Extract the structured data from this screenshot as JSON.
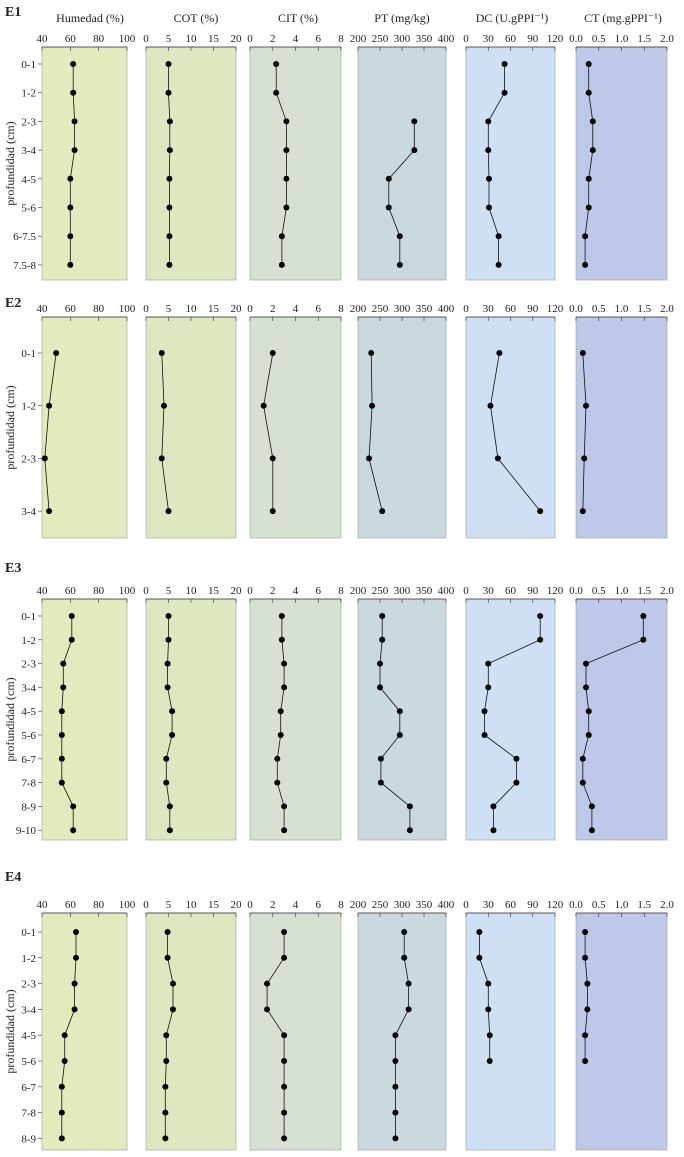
{
  "headers": [
    "Humedad (%)",
    "COT (%)",
    "CIT (%)",
    "PT (mg/kg)",
    "DC (U.gPPI⁻¹)",
    "CT (mg.gPPI⁻¹)"
  ],
  "ylabel": "profundidad (cm)",
  "colors": {
    "panels": [
      "#e2ebbd",
      "#dbe8c0",
      "#d6e1d4",
      "#c9d9dd",
      "#cfdff4",
      "#bec8e8"
    ],
    "axis": "#333333",
    "marker": "#000000"
  },
  "axes": [
    {
      "name": "Humedad",
      "lim": [
        40,
        100
      ],
      "ticks": [
        40,
        60,
        80,
        100
      ]
    },
    {
      "name": "COT",
      "lim": [
        0,
        20
      ],
      "ticks": [
        0,
        5,
        10,
        15,
        20
      ]
    },
    {
      "name": "CIT",
      "lim": [
        0,
        8
      ],
      "ticks": [
        0,
        2,
        4,
        6,
        8
      ]
    },
    {
      "name": "PT",
      "lim": [
        200,
        400
      ],
      "ticks": [
        200,
        250,
        300,
        350,
        400
      ]
    },
    {
      "name": "DC",
      "lim": [
        0,
        120
      ],
      "ticks": [
        0,
        30,
        60,
        90,
        120
      ]
    },
    {
      "name": "CT",
      "lim": [
        0,
        2
      ],
      "ticks": [
        0.0,
        0.5,
        1.0,
        1.5,
        2.0
      ]
    }
  ],
  "chart_data": [
    {
      "type": "line",
      "station": "E1",
      "depths": [
        "0-1",
        "1-2",
        "2-3",
        "3-4",
        "4-5",
        "5-6",
        "6-7.5",
        "7.5-8"
      ],
      "tick_labels": [
        [
          "40",
          "60",
          "80",
          "100"
        ],
        [
          "0",
          "5",
          "10",
          "15",
          "20"
        ],
        [
          "0",
          "2",
          "4",
          "6",
          "8"
        ],
        [
          "200",
          "250",
          "300",
          "350",
          "400"
        ],
        [
          "0",
          "30",
          "60",
          "90",
          "120"
        ],
        [
          "0.0",
          "0.5",
          "1.0",
          "1.5",
          "2.0"
        ]
      ],
      "series": [
        {
          "name": "Humedad (%)",
          "values": [
            62,
            62,
            63,
            63,
            60,
            60,
            60,
            60
          ]
        },
        {
          "name": "COT (%)",
          "values": [
            5.0,
            5.0,
            5.3,
            5.3,
            5.2,
            5.2,
            5.2,
            5.2
          ]
        },
        {
          "name": "CIT (%)",
          "values": [
            2.3,
            2.3,
            3.2,
            3.2,
            3.2,
            3.2,
            2.8,
            2.8
          ]
        },
        {
          "name": "PT (mg/kg)",
          "values": null
        },
        {
          "name": "DC (U.gPPI⁻¹)",
          "values": [
            52,
            52,
            30,
            30,
            31,
            31,
            44,
            44
          ]
        },
        {
          "name": "CT (mg.gPPI⁻¹)",
          "values": [
            0.28,
            0.28,
            0.37,
            0.37,
            0.28,
            0.28,
            0.2,
            0.2
          ]
        }
      ],
      "pt_values": [
        null,
        null,
        328,
        328,
        270,
        270,
        295,
        295
      ]
    },
    {
      "type": "line",
      "station": "E2",
      "depths": [
        "0-1",
        "1-2",
        "2-3",
        "3-4"
      ],
      "tick_labels": [
        [
          "40",
          "60",
          "80",
          "100"
        ],
        [
          "0",
          "5",
          "10",
          "15",
          "20"
        ],
        [
          "0",
          "2",
          "4",
          "6",
          "8"
        ],
        [
          "200",
          "250",
          "300",
          "350",
          "400"
        ],
        [
          "0",
          "30",
          "60",
          "90",
          "120"
        ],
        [
          "0.0",
          "0.5",
          "1.0",
          "1.5",
          "2.0"
        ]
      ],
      "series": [
        {
          "name": "Humedad (%)",
          "values": [
            50,
            45,
            42,
            45
          ]
        },
        {
          "name": "COT (%)",
          "values": [
            3.5,
            4.0,
            3.5,
            5.0
          ]
        },
        {
          "name": "CIT (%)",
          "values": [
            2.0,
            1.2,
            2.0,
            2.0
          ]
        },
        {
          "name": "PT (mg/kg)",
          "values": [
            230,
            232,
            225,
            255
          ]
        },
        {
          "name": "DC (U.gPPI⁻¹)",
          "values": [
            45,
            33,
            43,
            100
          ]
        },
        {
          "name": "CT (mg.gPPI⁻¹)",
          "values": [
            0.15,
            0.22,
            0.18,
            0.15
          ]
        }
      ]
    },
    {
      "type": "line",
      "station": "E3",
      "depths": [
        "0-1",
        "1-2",
        "2-3",
        "3-4",
        "4-5",
        "5-6",
        "6-7",
        "7-8",
        "8-9",
        "9-10"
      ],
      "tick_labels": [
        [
          "40",
          "60",
          "80",
          "100"
        ],
        [
          "0",
          "5",
          "10",
          "15",
          "20"
        ],
        [
          "0",
          "2",
          "4",
          "6",
          "8"
        ],
        [
          "200",
          "250",
          "300",
          "350",
          "400"
        ],
        [
          "0",
          "30",
          "60",
          "90",
          "120"
        ],
        [
          "0.0",
          "0.5",
          "1.0",
          "1.5",
          "2.0"
        ]
      ],
      "series": [
        {
          "name": "Humedad (%)",
          "values": [
            61,
            61,
            55,
            55,
            54,
            54,
            54,
            54,
            62,
            62
          ]
        },
        {
          "name": "COT (%)",
          "values": [
            5.0,
            5.0,
            4.8,
            4.8,
            5.8,
            5.8,
            4.5,
            4.5,
            5.3,
            5.3
          ]
        },
        {
          "name": "CIT (%)",
          "values": [
            2.8,
            2.8,
            3.0,
            3.0,
            2.7,
            2.7,
            2.4,
            2.4,
            3.0,
            3.0
          ]
        },
        {
          "name": "PT (mg/kg)",
          "values": [
            255,
            255,
            250,
            250,
            295,
            295,
            252,
            252,
            318,
            318
          ]
        },
        {
          "name": "DC (U.gPPI⁻¹)",
          "values": [
            100,
            100,
            30,
            30,
            25,
            25,
            68,
            68,
            37,
            37
          ]
        },
        {
          "name": "CT (mg.gPPI⁻¹)",
          "values": [
            1.48,
            1.48,
            0.22,
            0.22,
            0.28,
            0.28,
            0.15,
            0.15,
            0.35,
            0.35
          ]
        }
      ]
    },
    {
      "type": "line",
      "station": "E4",
      "depths": [
        "0-1",
        "1-2",
        "2-3",
        "3-4",
        "4-5",
        "5-6",
        "6-7",
        "7-8",
        "8-9"
      ],
      "tick_labels": [
        [
          "40",
          "60",
          "80",
          "100"
        ],
        [
          "0",
          "5",
          "10",
          "15",
          "20"
        ],
        [
          "0",
          "2",
          "4",
          "6",
          "8"
        ],
        [
          "200",
          "250",
          "300",
          "350",
          "400"
        ],
        [
          "0",
          "30",
          "60",
          "90",
          "120"
        ],
        [
          "0.0",
          "0.5",
          "1.0",
          "1.5",
          "2.0"
        ]
      ],
      "series": [
        {
          "name": "Humedad (%)",
          "values": [
            64,
            64,
            63,
            63,
            56,
            56,
            54,
            54,
            54
          ]
        },
        {
          "name": "COT (%)",
          "values": [
            4.8,
            4.8,
            6.0,
            6.0,
            4.5,
            4.5,
            4.3,
            4.3,
            4.3
          ]
        },
        {
          "name": "CIT (%)",
          "values": [
            3.0,
            3.0,
            1.5,
            1.5,
            3.0,
            3.0,
            3.0,
            3.0,
            3.0
          ]
        },
        {
          "name": "PT (mg/kg)",
          "values": [
            305,
            305,
            315,
            315,
            285,
            285,
            285,
            285,
            285
          ]
        },
        {
          "name": "DC (U.gPPI⁻¹)",
          "values": [
            18,
            18,
            30,
            30,
            32,
            32,
            null,
            null,
            null
          ]
        },
        {
          "name": "CT (mg.gPPI⁻¹)",
          "values": [
            0.2,
            0.2,
            0.25,
            0.25,
            0.2,
            0.2,
            null,
            null,
            null
          ]
        }
      ]
    }
  ]
}
